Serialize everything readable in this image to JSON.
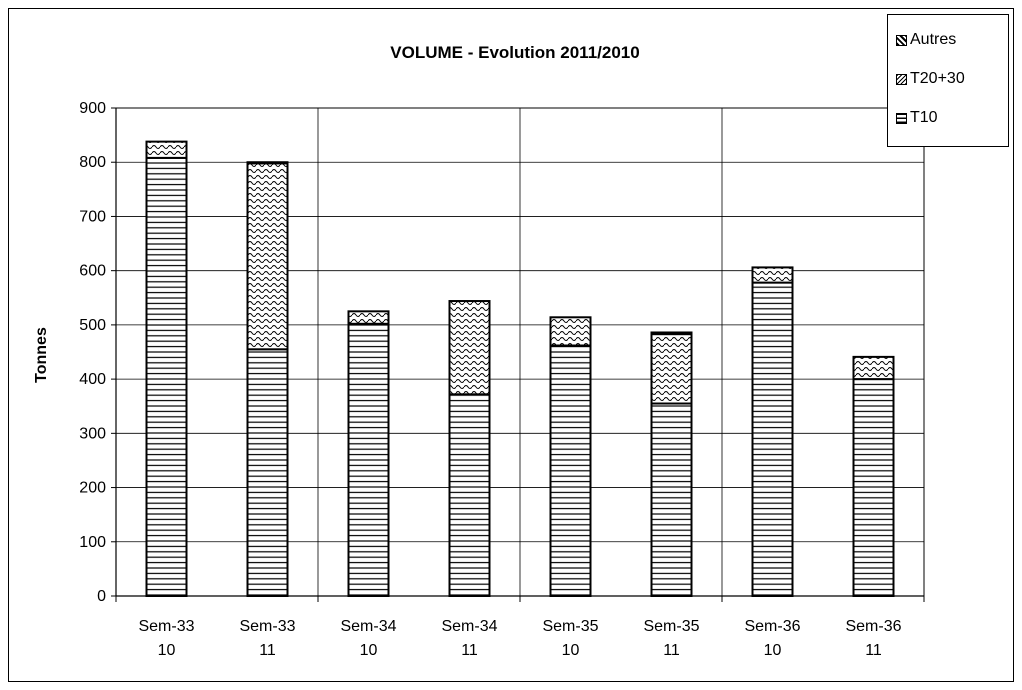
{
  "chart_data": {
    "type": "bar",
    "stacked": true,
    "title": "VOLUME - Evolution 2011/2010",
    "ylabel": "Tonnes",
    "xlabel": "",
    "ylim": [
      0,
      900
    ],
    "yticks": [
      "0",
      "100",
      "200",
      "300",
      "400",
      "500",
      "600",
      "700",
      "800",
      "900"
    ],
    "categories": [
      [
        "Sem-33",
        "10"
      ],
      [
        "Sem-33",
        "11"
      ],
      [
        "Sem-34",
        "10"
      ],
      [
        "Sem-34",
        "11"
      ],
      [
        "Sem-35",
        "10"
      ],
      [
        "Sem-35",
        "11"
      ],
      [
        "Sem-36",
        "10"
      ],
      [
        "Sem-36",
        "11"
      ]
    ],
    "series": [
      {
        "name": "T10",
        "values": [
          808,
          455,
          502,
          372,
          462,
          355,
          578,
          400
        ]
      },
      {
        "name": "T20+30",
        "values": [
          30,
          343,
          23,
          172,
          52,
          128,
          28,
          41
        ]
      },
      {
        "name": "Autres",
        "values": [
          0,
          2,
          0,
          0,
          0,
          3,
          0,
          0
        ]
      }
    ],
    "legend": {
      "position": "top-right",
      "entries": [
        "Autres",
        "T20+30",
        "T10"
      ]
    },
    "grid": true
  }
}
